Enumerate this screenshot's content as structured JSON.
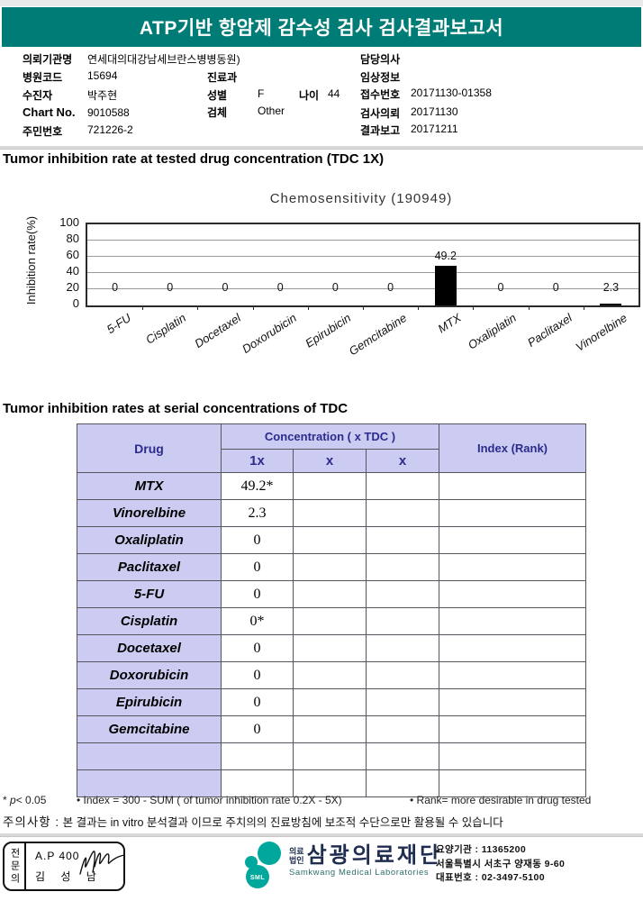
{
  "header": {
    "title": "ATP기반 항암제 감수성 검사 검사결과보고서"
  },
  "info": {
    "org": {
      "label": "의뢰기관명",
      "value": "연세대의대강남세브란스병병동원)"
    },
    "hospital_code": {
      "label": "병원코드",
      "value": "15694"
    },
    "department": {
      "label": "진료과",
      "value": ""
    },
    "patient": {
      "label": "수진자",
      "value": "박주현"
    },
    "sex": {
      "label": "성별",
      "value": "F"
    },
    "age": {
      "label": "나이",
      "value": "44"
    },
    "chart_no": {
      "label": "Chart No.",
      "value": "9010588"
    },
    "specimen": {
      "label": "검체",
      "value": "Other"
    },
    "resident_no": {
      "label": "주민번호",
      "value": "721226-2"
    },
    "doctor": {
      "label": "담당의사",
      "value": ""
    },
    "clinical": {
      "label": "임상정보",
      "value": ""
    },
    "receipt_no": {
      "label": "접수번호",
      "value": "20171130-01358"
    },
    "request_date": {
      "label": "검사의뢰",
      "value": "20171130"
    },
    "report_date": {
      "label": "결과보고",
      "value": "20171211"
    }
  },
  "section1": {
    "title": "Tumor inhibition rate at tested drug concentration (TDC 1X)"
  },
  "chart_data": {
    "type": "bar",
    "title": "Chemosensitivity (190949)",
    "xlabel": "",
    "ylabel": "Inhibition rate(%)",
    "ylim": [
      0,
      100
    ],
    "yticks": [
      0,
      20,
      40,
      60,
      80,
      100
    ],
    "grid": true,
    "legend": "none",
    "bar_color": "#000000",
    "categories": [
      "5-FU",
      "Cisplatin",
      "Docetaxel",
      "Doxorubicin",
      "Epirubicin",
      "Gemcitabine",
      "MTX",
      "Oxaliplatin",
      "Paclitaxel",
      "Vinorelbine"
    ],
    "values": [
      0,
      0,
      0,
      0,
      0,
      0,
      49.2,
      0,
      0,
      2.3
    ]
  },
  "section2": {
    "title": "Tumor inhibition rates at serial concentrations of TDC"
  },
  "table": {
    "drug_header": "Drug",
    "conc_header": "Concentration ( x TDC )",
    "conc_cols": [
      "1x",
      "x",
      "x"
    ],
    "index_header": "Index (Rank)",
    "rows": [
      {
        "drug": "MTX",
        "c1": "49.2*",
        "c2": "",
        "c3": "",
        "index": ""
      },
      {
        "drug": "Vinorelbine",
        "c1": "2.3",
        "c2": "",
        "c3": "",
        "index": ""
      },
      {
        "drug": "Oxaliplatin",
        "c1": "0",
        "c2": "",
        "c3": "",
        "index": ""
      },
      {
        "drug": "Paclitaxel",
        "c1": "0",
        "c2": "",
        "c3": "",
        "index": ""
      },
      {
        "drug": "5-FU",
        "c1": "0",
        "c2": "",
        "c3": "",
        "index": ""
      },
      {
        "drug": "Cisplatin",
        "c1": "0*",
        "c2": "",
        "c3": "",
        "index": ""
      },
      {
        "drug": "Docetaxel",
        "c1": "0",
        "c2": "",
        "c3": "",
        "index": ""
      },
      {
        "drug": "Doxorubicin",
        "c1": "0",
        "c2": "",
        "c3": "",
        "index": ""
      },
      {
        "drug": "Epirubicin",
        "c1": "0",
        "c2": "",
        "c3": "",
        "index": ""
      },
      {
        "drug": "Gemcitabine",
        "c1": "0",
        "c2": "",
        "c3": "",
        "index": ""
      },
      {
        "drug": "",
        "c1": "",
        "c2": "",
        "c3": "",
        "index": ""
      },
      {
        "drug": "",
        "c1": "",
        "c2": "",
        "c3": "",
        "index": ""
      }
    ]
  },
  "footnotes": {
    "sig_star": "* ",
    "sig_p": "p",
    "sig_rest": "< 0.05",
    "index_def": "•  Index = 300 - SUM ( of tumor inhibition rate 0.2X  -  5X)",
    "rank_def": "•  Rank= more desirable in drug tested"
  },
  "notice": {
    "label": "주의사항 :",
    "text": "본 결과는 in vitro 분석결과 이므로 주치의의 진료방침에 보조적 수단으로만 활용될 수 있습니다"
  },
  "footer": {
    "stamp": {
      "role": "전문의",
      "code": "A.P 400",
      "name": "김 성 남"
    },
    "logo": {
      "sml": "SML",
      "org_type_line1": "의료",
      "org_type_line2": "법인",
      "name": "삼광의료재단",
      "name_en": "Samkwang Medical Laboratories"
    },
    "contact": {
      "line1": "요양기관 : 11365200",
      "line2": "서울특별시 서초구 양재동 9-60",
      "line3": "대표번호 : 02-3497-5100"
    }
  },
  "colors": {
    "header_bg": "#007C76",
    "table_header_bg": "#CCCCF2",
    "table_header_text": "#2B2B8E",
    "logo_teal": "#00A79D",
    "bar": "#000000"
  }
}
